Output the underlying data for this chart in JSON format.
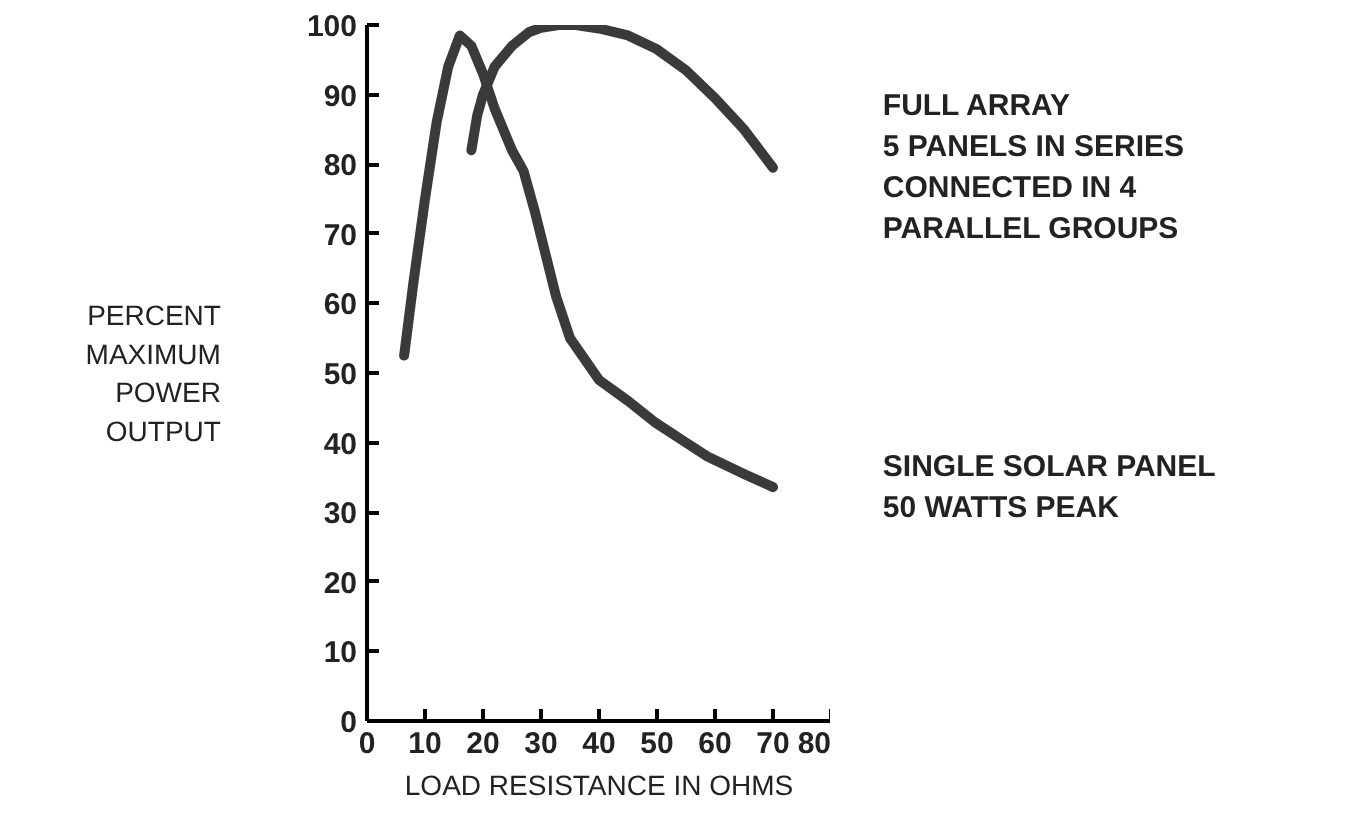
{
  "chart_data": {
    "type": "line",
    "xlabel": "LOAD RESISTANCE IN OHMS",
    "ylabel": "PERCENT\nMAXIMUM\nPOWER\nOUTPUT",
    "xlim": [
      0,
      80
    ],
    "xticks": [
      0,
      10,
      20,
      30,
      40,
      50,
      60,
      70,
      80
    ],
    "ylim": [
      0,
      100
    ],
    "yticks": [
      0,
      10,
      20,
      30,
      40,
      50,
      60,
      70,
      80,
      90,
      100
    ],
    "grid": false,
    "marker": "none",
    "line_style": "solid",
    "series": [
      {
        "name": "FULL ARRAY\n5 PANELS IN SERIES\nCONNECTED IN 4\nPARALLEL GROUPS",
        "color": "#3a3a3a",
        "x": [
          18,
          19,
          20,
          22,
          25,
          28,
          30,
          33,
          36,
          40,
          45,
          50,
          55,
          60,
          65,
          70
        ],
        "values": [
          82,
          87,
          90,
          94,
          97,
          99,
          99.6,
          100,
          100,
          99.5,
          98.5,
          96.5,
          93.5,
          89.5,
          85,
          79.5
        ]
      },
      {
        "name": "SINGLE SOLAR PANEL\n50 WATTS PEAK",
        "color": "#3a3a3a",
        "x": [
          6.4,
          8,
          10,
          12,
          14,
          16,
          18,
          20,
          22,
          25,
          27,
          29,
          32.6,
          35,
          40,
          45,
          49.5,
          55,
          58.7,
          65,
          70
        ],
        "values": [
          52.5,
          63,
          75,
          86,
          94,
          98.5,
          97,
          93,
          88,
          82,
          79,
          73,
          61,
          55,
          49,
          46,
          43,
          40,
          38,
          35.5,
          33.6
        ]
      }
    ]
  }
}
